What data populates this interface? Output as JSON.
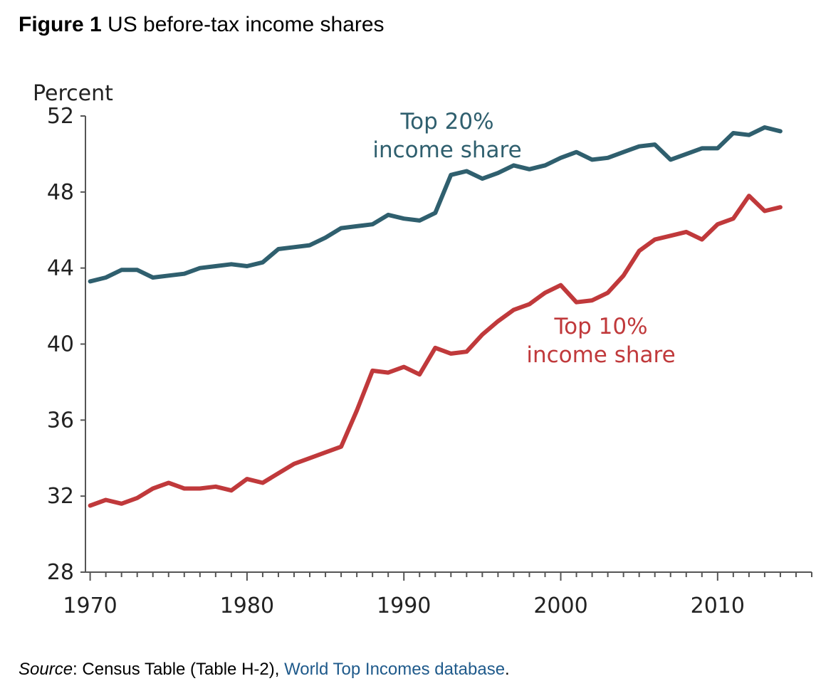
{
  "figure": {
    "label": "Figure 1",
    "title": "US before-tax income shares"
  },
  "source": {
    "label": "Source",
    "text": ": Census Table (Table H-2), ",
    "link_text": "World Top Incomes database",
    "end": "."
  },
  "colors": {
    "top20": "#2f5f6e",
    "top10": "#c0393b",
    "axis": "#555555"
  },
  "chart_data": {
    "type": "line",
    "title": "US before-tax income shares",
    "ylabel": "Percent",
    "xlabel": "",
    "xlim": [
      1969.7,
      2016
    ],
    "ylim": [
      28,
      52
    ],
    "yticks": [
      28,
      32,
      36,
      40,
      44,
      48,
      52
    ],
    "xticks": [
      1970,
      1980,
      1990,
      2000,
      2010
    ],
    "series": [
      {
        "name": "Top 20% income share",
        "label_lines": [
          "Top 20%",
          "income share"
        ],
        "color": "#2f5f6e",
        "x": [
          1970,
          1971,
          1972,
          1973,
          1974,
          1975,
          1976,
          1977,
          1978,
          1979,
          1980,
          1981,
          1982,
          1983,
          1984,
          1985,
          1986,
          1987,
          1988,
          1989,
          1990,
          1991,
          1992,
          1993,
          1994,
          1995,
          1996,
          1997,
          1998,
          1999,
          2000,
          2001,
          2002,
          2003,
          2004,
          2005,
          2006,
          2007,
          2008,
          2009,
          2010,
          2011,
          2012,
          2013,
          2014
        ],
        "values": [
          43.3,
          43.5,
          43.9,
          43.9,
          43.5,
          43.6,
          43.7,
          44.0,
          44.1,
          44.2,
          44.1,
          44.3,
          45.0,
          45.1,
          45.2,
          45.6,
          46.1,
          46.2,
          46.3,
          46.8,
          46.6,
          46.5,
          46.9,
          48.9,
          49.1,
          48.7,
          49.0,
          49.4,
          49.2,
          49.4,
          49.8,
          50.1,
          49.7,
          49.8,
          50.1,
          50.4,
          50.5,
          49.7,
          50.0,
          50.3,
          50.3,
          51.1,
          51.0,
          51.4,
          51.2
        ]
      },
      {
        "name": "Top 10% income share",
        "label_lines": [
          "Top 10%",
          "income share"
        ],
        "color": "#c0393b",
        "x": [
          1970,
          1971,
          1972,
          1973,
          1974,
          1975,
          1976,
          1977,
          1978,
          1979,
          1980,
          1981,
          1982,
          1983,
          1984,
          1985,
          1986,
          1987,
          1988,
          1989,
          1990,
          1991,
          1992,
          1993,
          1994,
          1995,
          1996,
          1997,
          1998,
          1999,
          2000,
          2001,
          2002,
          2003,
          2004,
          2005,
          2006,
          2007,
          2008,
          2009,
          2010,
          2011,
          2012,
          2013,
          2014
        ],
        "values": [
          31.5,
          31.8,
          31.6,
          31.9,
          32.4,
          32.7,
          32.4,
          32.4,
          32.5,
          32.3,
          32.9,
          32.7,
          33.2,
          33.7,
          34.0,
          34.3,
          34.6,
          36.5,
          38.6,
          38.5,
          38.8,
          38.4,
          39.8,
          39.5,
          39.6,
          40.5,
          41.2,
          41.8,
          42.1,
          42.7,
          43.1,
          42.2,
          42.3,
          42.7,
          43.6,
          44.9,
          45.5,
          45.7,
          45.9,
          45.5,
          46.3,
          46.6,
          47.8,
          47.0,
          47.2
        ]
      }
    ]
  }
}
